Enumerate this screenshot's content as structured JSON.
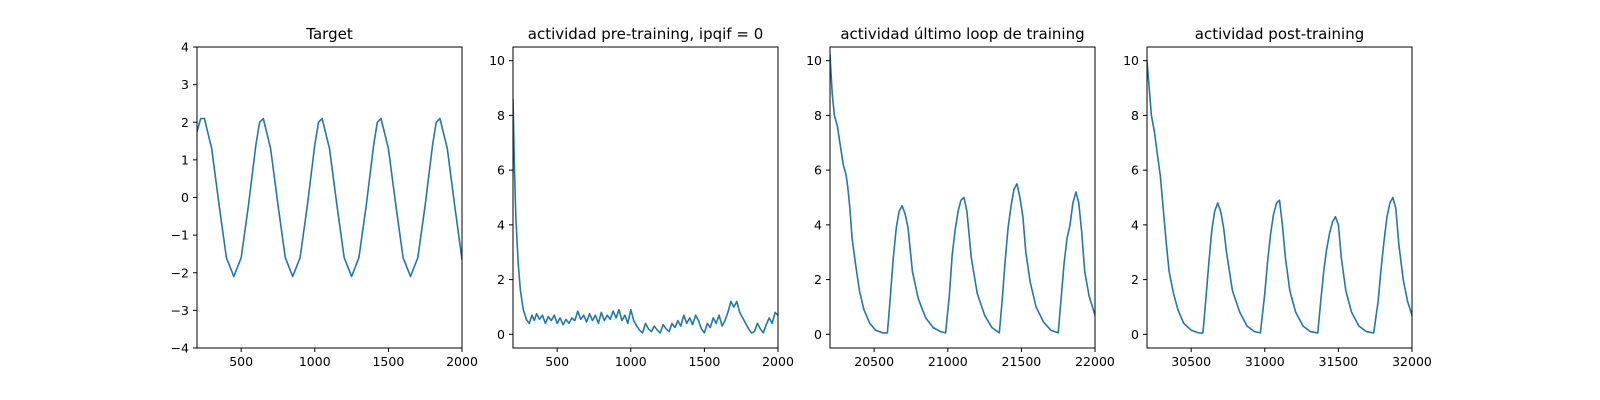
{
  "figure": {
    "line_color": "#1f77b4"
  },
  "chart_data": [
    {
      "type": "line",
      "title": "Target",
      "xlim": [
        200,
        2000
      ],
      "ylim": [
        -4,
        4
      ],
      "xticks": [
        500,
        1000,
        1500,
        2000
      ],
      "yticks": [
        -4,
        -3,
        -2,
        -1,
        0,
        1,
        2,
        3,
        4
      ],
      "xticklabels": [
        "500",
        "1000",
        "1500",
        "2000"
      ],
      "yticklabels": [
        "−4",
        "−3",
        "−2",
        "−1",
        "0",
        "1",
        "2",
        "3",
        "4"
      ],
      "series": [
        {
          "x": [
            200,
            225,
            250,
            300,
            350,
            400,
            450,
            500,
            550,
            600,
            625,
            650,
            700,
            750,
            800,
            850,
            900,
            950,
            1000,
            1025,
            1050,
            1100,
            1150,
            1200,
            1250,
            1300,
            1350,
            1400,
            1425,
            1450,
            1500,
            1550,
            1600,
            1650,
            1700,
            1750,
            1800,
            1825,
            1850,
            1900,
            1950,
            2000
          ],
          "y": [
            1.75,
            2.1,
            2.1,
            1.3,
            -0.2,
            -1.6,
            -2.1,
            -1.6,
            -0.2,
            1.4,
            2.0,
            2.1,
            1.3,
            -0.2,
            -1.6,
            -2.1,
            -1.6,
            -0.2,
            1.4,
            2.0,
            2.1,
            1.3,
            -0.2,
            -1.6,
            -2.1,
            -1.6,
            -0.2,
            1.4,
            2.0,
            2.1,
            1.3,
            -0.2,
            -1.6,
            -2.1,
            -1.6,
            -0.2,
            1.4,
            2.0,
            2.1,
            1.3,
            -0.2,
            -1.65
          ]
        }
      ]
    },
    {
      "type": "line",
      "title": "actividad pre-training, ipqif = 0",
      "xlim": [
        200,
        2000
      ],
      "ylim": [
        -0.5,
        10.5
      ],
      "xticks": [
        500,
        1000,
        1500,
        2000
      ],
      "yticks": [
        0,
        2,
        4,
        6,
        8,
        10
      ],
      "xticklabels": [
        "500",
        "1000",
        "1500",
        "2000"
      ],
      "yticklabels": [
        "0",
        "2",
        "4",
        "6",
        "8",
        "10"
      ],
      "series": [
        {
          "x": [
            200,
            210,
            220,
            235,
            250,
            270,
            290,
            310,
            330,
            345,
            360,
            380,
            400,
            420,
            440,
            460,
            480,
            500,
            520,
            540,
            560,
            580,
            600,
            620,
            640,
            660,
            680,
            700,
            720,
            740,
            760,
            780,
            800,
            820,
            840,
            860,
            880,
            900,
            920,
            940,
            960,
            980,
            1000,
            1020,
            1040,
            1060,
            1080,
            1100,
            1120,
            1140,
            1160,
            1180,
            1200,
            1220,
            1240,
            1260,
            1280,
            1300,
            1320,
            1340,
            1360,
            1380,
            1400,
            1420,
            1440,
            1460,
            1480,
            1500,
            1520,
            1540,
            1560,
            1580,
            1600,
            1620,
            1640,
            1660,
            1680,
            1700,
            1720,
            1740,
            1760,
            1780,
            1800,
            1820,
            1840,
            1860,
            1880,
            1900,
            1920,
            1940,
            1960,
            1980,
            2000
          ],
          "y": [
            8.6,
            6.0,
            4.2,
            2.6,
            1.6,
            0.9,
            0.55,
            0.4,
            0.7,
            0.5,
            0.75,
            0.55,
            0.7,
            0.4,
            0.65,
            0.5,
            0.7,
            0.4,
            0.6,
            0.35,
            0.55,
            0.4,
            0.6,
            0.5,
            0.85,
            0.55,
            0.7,
            0.45,
            0.75,
            0.5,
            0.7,
            0.4,
            0.8,
            0.5,
            0.7,
            0.55,
            0.85,
            0.6,
            0.9,
            0.5,
            0.7,
            0.4,
            0.9,
            0.5,
            0.3,
            0.15,
            0.05,
            0.4,
            0.2,
            0.1,
            0.3,
            0.15,
            0.05,
            0.35,
            0.2,
            0.1,
            0.4,
            0.25,
            0.5,
            0.3,
            0.7,
            0.4,
            0.6,
            0.35,
            0.7,
            0.5,
            0.2,
            0.05,
            0.4,
            0.25,
            0.6,
            0.4,
            0.7,
            0.3,
            0.5,
            0.8,
            1.2,
            1.0,
            1.2,
            0.8,
            0.6,
            0.4,
            0.2,
            0.05,
            0.1,
            0.4,
            0.2,
            0.05,
            0.35,
            0.6,
            0.4,
            0.8,
            0.7
          ]
        }
      ]
    },
    {
      "type": "line",
      "title": "actividad último loop de training",
      "xlim": [
        20200,
        22000
      ],
      "ylim": [
        -0.5,
        10.5
      ],
      "xticks": [
        20500,
        21000,
        21500,
        22000
      ],
      "yticks": [
        0,
        2,
        4,
        6,
        8,
        10
      ],
      "xticklabels": [
        "20500",
        "21000",
        "21500",
        "22000"
      ],
      "yticklabels": [
        "0",
        "2",
        "4",
        "6",
        "8",
        "10"
      ],
      "series": [
        {
          "x": [
            20200,
            20215,
            20230,
            20250,
            20270,
            20290,
            20310,
            20320,
            20335,
            20350,
            20375,
            20400,
            20430,
            20470,
            20510,
            20560,
            20590,
            20610,
            20630,
            20650,
            20670,
            20690,
            20710,
            20730,
            20760,
            20800,
            20850,
            20900,
            20950,
            20985,
            21010,
            21030,
            21050,
            21070,
            21090,
            21110,
            21130,
            21160,
            21200,
            21250,
            21300,
            21350,
            21370,
            21390,
            21410,
            21430,
            21450,
            21470,
            21490,
            21510,
            21530,
            21560,
            21600,
            21650,
            21700,
            21750,
            21770,
            21790,
            21810,
            21830,
            21850,
            21870,
            21890,
            21910,
            21930,
            21960,
            22000
          ],
          "y": [
            10.2,
            8.8,
            8.0,
            7.6,
            6.9,
            6.2,
            5.8,
            5.4,
            4.6,
            3.5,
            2.5,
            1.6,
            0.9,
            0.4,
            0.15,
            0.05,
            0.05,
            1.4,
            2.8,
            3.9,
            4.5,
            4.7,
            4.4,
            3.9,
            2.3,
            1.3,
            0.6,
            0.25,
            0.1,
            0.05,
            1.4,
            2.9,
            3.8,
            4.5,
            4.9,
            5.0,
            4.5,
            2.8,
            1.5,
            0.7,
            0.25,
            0.05,
            1.3,
            2.7,
            3.9,
            4.7,
            5.3,
            5.5,
            5.0,
            4.3,
            3.0,
            1.9,
            1.0,
            0.45,
            0.15,
            0.05,
            1.3,
            2.6,
            3.5,
            4.0,
            4.8,
            5.2,
            4.8,
            3.7,
            2.3,
            1.4,
            0.7
          ]
        }
      ]
    },
    {
      "type": "line",
      "title": "actividad post-training",
      "xlim": [
        30200,
        32000
      ],
      "ylim": [
        -0.5,
        10.5
      ],
      "xticks": [
        30500,
        31000,
        31500,
        32000
      ],
      "yticks": [
        0,
        2,
        4,
        6,
        8,
        10
      ],
      "xticklabels": [
        "30500",
        "31000",
        "31500",
        "32000"
      ],
      "yticklabels": [
        "0",
        "2",
        "4",
        "6",
        "8",
        "10"
      ],
      "series": [
        {
          "x": [
            30200,
            30215,
            30230,
            30250,
            30270,
            30290,
            30310,
            30330,
            30350,
            30380,
            30410,
            30450,
            30500,
            30550,
            30580,
            30600,
            30620,
            30640,
            30660,
            30680,
            30700,
            30720,
            30740,
            30780,
            30830,
            30880,
            30930,
            30970,
            31000,
            31020,
            31040,
            31060,
            31080,
            31100,
            31120,
            31140,
            31170,
            31210,
            31260,
            31310,
            31360,
            31380,
            31400,
            31420,
            31440,
            31460,
            31480,
            31500,
            31520,
            31550,
            31590,
            31640,
            31690,
            31740,
            31770,
            31790,
            31810,
            31830,
            31850,
            31870,
            31890,
            31910,
            31940,
            31970,
            32000
          ],
          "y": [
            10.0,
            9.0,
            8.0,
            7.4,
            6.6,
            5.8,
            4.6,
            3.4,
            2.3,
            1.5,
            0.9,
            0.4,
            0.15,
            0.05,
            0.05,
            1.3,
            2.6,
            3.8,
            4.5,
            4.8,
            4.5,
            3.9,
            3.0,
            1.6,
            0.8,
            0.3,
            0.1,
            0.05,
            1.5,
            2.7,
            3.7,
            4.4,
            4.8,
            4.9,
            4.0,
            2.8,
            1.6,
            0.8,
            0.3,
            0.1,
            0.05,
            1.2,
            2.3,
            3.1,
            3.7,
            4.1,
            4.3,
            4.0,
            2.8,
            1.6,
            0.8,
            0.3,
            0.1,
            0.05,
            1.2,
            2.4,
            3.4,
            4.3,
            4.8,
            5.0,
            4.6,
            3.3,
            2.0,
            1.2,
            0.7
          ]
        }
      ]
    }
  ]
}
